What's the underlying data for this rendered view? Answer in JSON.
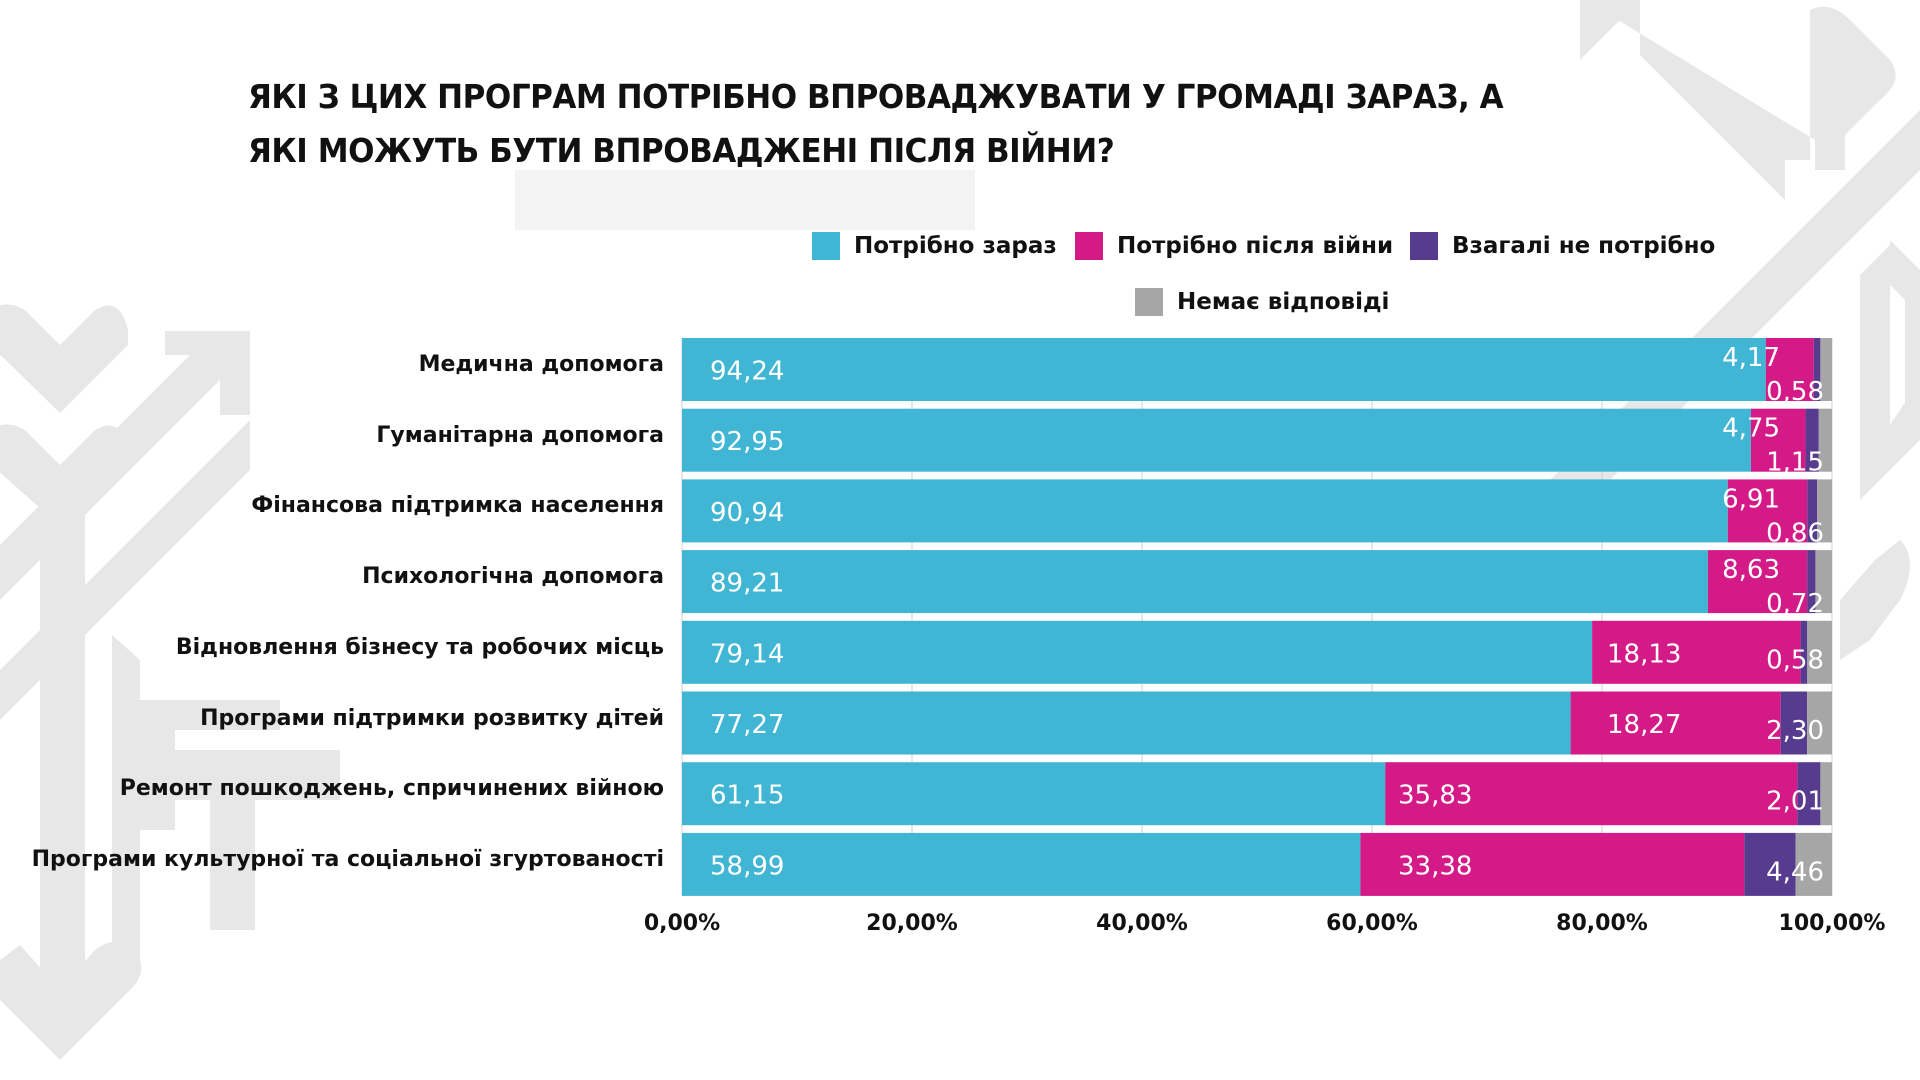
{
  "chart_data": {
    "type": "bar",
    "orientation": "horizontal",
    "stacked": true,
    "title": "ЯКІ З ЦИХ ПРОГРАМ ПОТРІБНО ВПРОВАДЖУВАТИ У  ГРОМАДІ ЗАРАЗ, А ЯКІ МОЖУТЬ БУТИ ВПРОВАДЖЕНІ ПІСЛЯ ВІЙНИ?",
    "title_lines": [
      "ЯКІ З ЦИХ ПРОГРАМ ПОТРІБНО ВПРОВАДЖУВАТИ У  ГРОМАДІ ЗАРАЗ, А",
      "ЯКІ МОЖУТЬ БУТИ ВПРОВАДЖЕНІ ПІСЛЯ ВІЙНИ?"
    ],
    "xlabel": "",
    "ylabel": "",
    "xlim": [
      0,
      100
    ],
    "x_ticks": [
      0,
      20,
      40,
      60,
      80,
      100
    ],
    "x_tick_labels": [
      "0,00%",
      "20,00%",
      "40,00%",
      "60,00%",
      "80,00%",
      "100,00%"
    ],
    "grid": "vertical",
    "legend_position": "top-right",
    "categories": [
      "Медична допомога",
      "Гуманітарна допомога",
      "Фінансова підтримка населення",
      "Психологічна допомога",
      "Відновлення бізнесу та робочих місць",
      "Програми підтримки розвитку дітей",
      "Ремонт пошкоджень, спричинених війною",
      "Програми культурної та соціальної згуртованості"
    ],
    "series": [
      {
        "name": "Потрібно зараз",
        "color": "#41b6d4",
        "values": [
          94.24,
          92.95,
          90.94,
          89.21,
          79.14,
          77.27,
          61.15,
          58.99
        ],
        "labels": [
          "94,24",
          "92,95",
          "90,94",
          "89,21",
          "79,14",
          "77,27",
          "61,15",
          "58,99"
        ]
      },
      {
        "name": "Потрібно після війни",
        "color": "#d41a87",
        "values": [
          4.17,
          4.75,
          6.91,
          8.63,
          18.13,
          18.27,
          35.83,
          33.38
        ],
        "labels": [
          "4,17",
          "4,75",
          "6,91",
          "8,63",
          "18,13",
          "18,27",
          "35,83",
          "33,38"
        ]
      },
      {
        "name": "Взагалі не потрібно",
        "color": "#573b8f",
        "values": [
          0.58,
          1.15,
          0.86,
          0.72,
          0.58,
          2.3,
          2.01,
          4.46
        ],
        "labels": [
          "0,58",
          "1,15",
          "0,86",
          "0,72",
          "0,58",
          "2,30",
          "2,01",
          "4,46"
        ]
      },
      {
        "name": "Немає відповіді",
        "color": "#a6a6a6",
        "values": [
          1.01,
          1.15,
          1.29,
          1.44,
          2.15,
          2.16,
          1.01,
          3.17
        ],
        "labels": []
      }
    ]
  }
}
